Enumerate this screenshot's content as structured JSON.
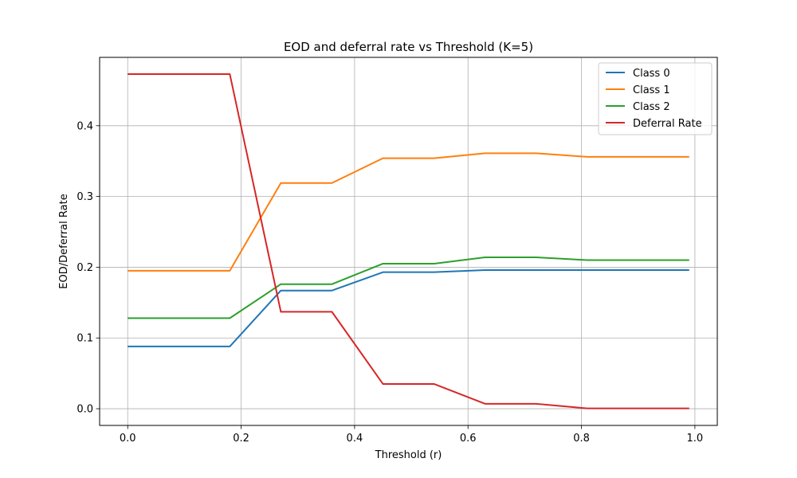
{
  "chart_data": {
    "type": "line",
    "title": "EOD and deferral rate vs Threshold (K=5)",
    "xlabel": "Threshold (r)",
    "ylabel": "EOD/Deferral Rate",
    "xlim": [
      -0.0495,
      1.0395
    ],
    "ylim": [
      -0.0236,
      0.4966
    ],
    "x_ticks": [
      0.0,
      0.2,
      0.4,
      0.6,
      0.8,
      1.0
    ],
    "x_tick_labels": [
      "0.0",
      "0.2",
      "0.4",
      "0.6",
      "0.8",
      "1.0"
    ],
    "y_ticks": [
      0.0,
      0.1,
      0.2,
      0.3,
      0.4
    ],
    "y_tick_labels": [
      "0.0",
      "0.1",
      "0.2",
      "0.3",
      "0.4"
    ],
    "grid": true,
    "legend_position": "top-right",
    "x": [
      0.0,
      0.09,
      0.18,
      0.27,
      0.36,
      0.45,
      0.54,
      0.63,
      0.72,
      0.81,
      0.9,
      0.99
    ],
    "series": [
      {
        "name": "Class 0",
        "color": "#1f77b4",
        "values": [
          0.088,
          0.088,
          0.088,
          0.167,
          0.167,
          0.193,
          0.193,
          0.196,
          0.196,
          0.196,
          0.196,
          0.196
        ]
      },
      {
        "name": "Class 1",
        "color": "#ff7f0e",
        "values": [
          0.195,
          0.195,
          0.195,
          0.319,
          0.319,
          0.354,
          0.354,
          0.361,
          0.361,
          0.356,
          0.356,
          0.356
        ]
      },
      {
        "name": "Class 2",
        "color": "#2ca02c",
        "values": [
          0.128,
          0.128,
          0.128,
          0.176,
          0.176,
          0.205,
          0.205,
          0.214,
          0.214,
          0.21,
          0.21,
          0.21
        ]
      },
      {
        "name": "Deferral Rate",
        "color": "#d62728",
        "values": [
          0.473,
          0.473,
          0.473,
          0.137,
          0.137,
          0.035,
          0.035,
          0.007,
          0.007,
          0.0005,
          0.0005,
          0.0005
        ]
      }
    ]
  }
}
